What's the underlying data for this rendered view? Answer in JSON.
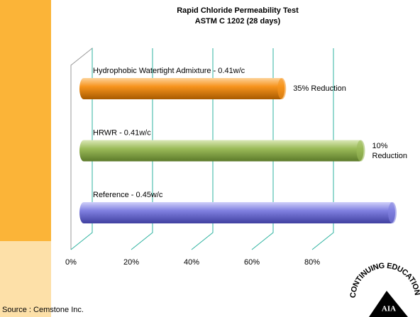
{
  "chart_data": {
    "type": "hbar3d",
    "title": [
      "Rapid Chloride Permeability Test",
      "ASTM C 1202 (28 days)"
    ],
    "categories": [
      "Hydrophobic Watertight Admixture - 0.41w/c",
      "HRWR - 0.41w/c",
      "Reference - 0.45w/c"
    ],
    "values": [
      65,
      90,
      100
    ],
    "colors": [
      "#f7941d",
      "#9bbb59",
      "#8080e0"
    ],
    "annotations": [
      "35% Reduction",
      "10% Reduction",
      null
    ],
    "xlim": [
      0,
      100
    ],
    "xticks": [
      {
        "value": 0,
        "label": "0%"
      },
      {
        "value": 20,
        "label": "20%"
      },
      {
        "value": 40,
        "label": "40%"
      },
      {
        "value": 60,
        "label": "60%"
      },
      {
        "value": 80,
        "label": "80%"
      }
    ],
    "grid": true
  },
  "source": "Source : Cemstone Inc.",
  "logo": {
    "text": "AIA",
    "ring": "CONTINUING EDUCATION"
  }
}
